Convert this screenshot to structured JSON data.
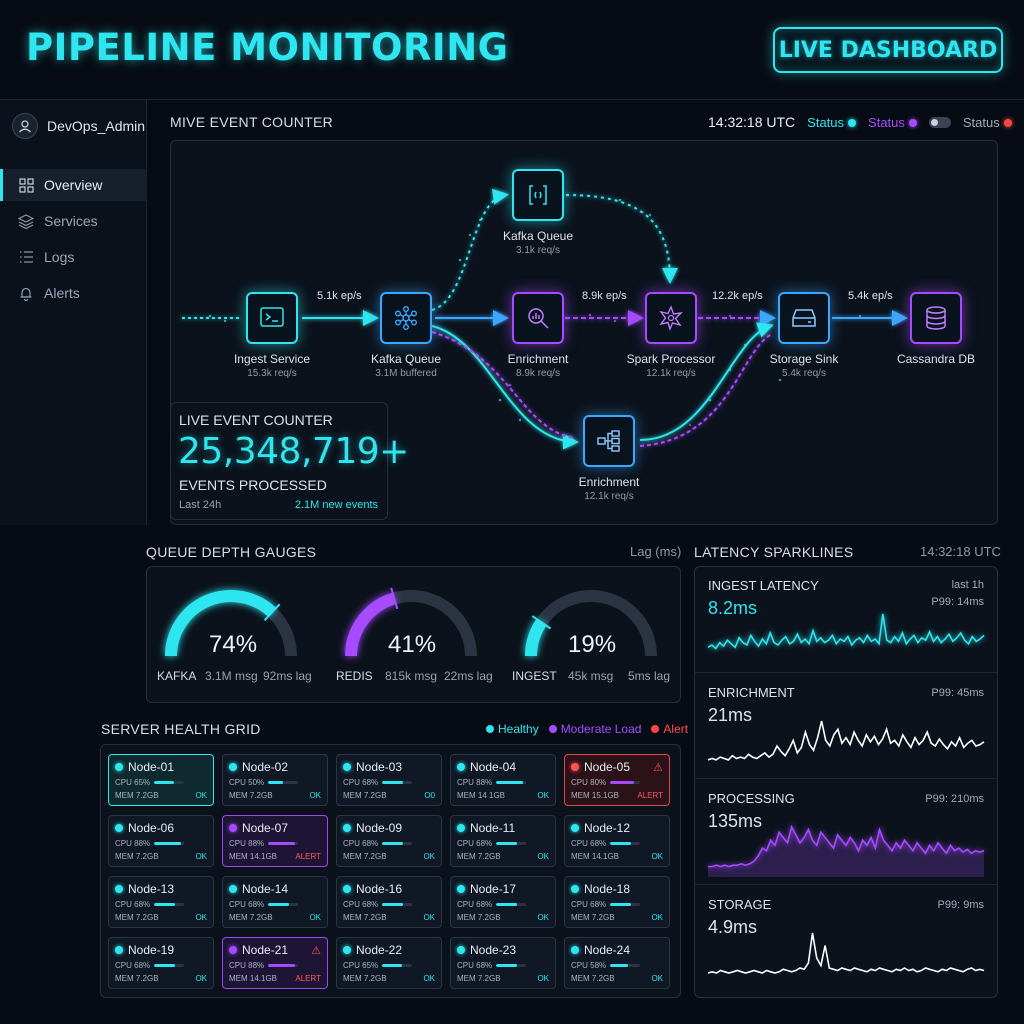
{
  "header": {
    "title": "PIPELINE MONITORING",
    "live_button": "LIVE DASHBOARD"
  },
  "sidebar": {
    "user": "DevOps_Admin",
    "items": [
      {
        "label": "Overview",
        "icon": "grid-icon",
        "active": true
      },
      {
        "label": "Services",
        "icon": "layers-icon"
      },
      {
        "label": "Logs",
        "icon": "list-icon"
      },
      {
        "label": "Alerts",
        "icon": "bell-icon"
      }
    ]
  },
  "event_section": {
    "title": "MIVE EVENT COUNTER",
    "time": "14:32:18 UTC",
    "statuses": [
      {
        "label": "Status",
        "color": "#2ee6ef"
      },
      {
        "label": "Status",
        "color": "#a64bff"
      },
      {
        "label": "Status",
        "color": "#ff4444"
      }
    ]
  },
  "pipeline": {
    "nodes": {
      "ingest": {
        "label": "Ingest Service",
        "sub": "15.3k req/s"
      },
      "kafka": {
        "label": "Kafka Queue",
        "sub": "3.1M buffered"
      },
      "kafka_top": {
        "label": "Kafka Queue",
        "sub": "3.1k req/s"
      },
      "enrich": {
        "label": "Enrichment",
        "sub": "8.9k req/s"
      },
      "spark": {
        "label": "Spark Processor",
        "sub": "12.1k req/s"
      },
      "storage": {
        "label": "Storage Sink",
        "sub": "5.4k req/s"
      },
      "cassandra": {
        "label": "Cassandra DB",
        "sub": ""
      },
      "enrich_bottom": {
        "label": "Enrichment",
        "sub": "12.1k req/s"
      }
    },
    "rates": {
      "r1": "5.1k ep/s",
      "r2": "8.9k ep/s",
      "r3": "12.2k ep/s",
      "r4": "5.4k ep/s"
    }
  },
  "counter": {
    "title": "LIVE EVENT COUNTER",
    "value": "25,348,719+",
    "caption": "EVENTS PROCESSED",
    "period": "Last 24h",
    "new_events": "2.1M new events"
  },
  "queue": {
    "title": "QUEUE DEPTH GAUGES",
    "unit": "Lag (ms)",
    "gauges": [
      {
        "name": "KAFKA",
        "pct": "74%",
        "msg": "3.1M msg",
        "lag": "92ms lag",
        "value": 0.74,
        "color": "#2ee6ef"
      },
      {
        "name": "REDIS",
        "pct": "41%",
        "msg": "815k msg",
        "lag": "22ms lag",
        "value": 0.41,
        "color": "#a64bff"
      },
      {
        "name": "INGEST",
        "pct": "19%",
        "msg": "45k msg",
        "lag": "5ms lag",
        "value": 0.19,
        "color": "#2ee6ef"
      }
    ]
  },
  "server": {
    "title": "SERVER HEALTH GRID",
    "legend": [
      {
        "label": "Healthy",
        "color": "#2ee6ef"
      },
      {
        "label": "Moderate Load",
        "color": "#a64bff"
      },
      {
        "label": "Alert",
        "color": "#ff4444"
      }
    ],
    "nodes": [
      {
        "name": "Node-01",
        "cpu": "CPU 65%",
        "mem": "MEM 7.2GB",
        "status": "OK",
        "state": "cyan",
        "load": 0.65
      },
      {
        "name": "Node-02",
        "cpu": "CPU 50%",
        "mem": "MEM 7.2GB",
        "status": "OK",
        "state": "healthy",
        "load": 0.5
      },
      {
        "name": "Node-03",
        "cpu": "CPU 68%",
        "mem": "MEM 7.2GB",
        "status": "O0",
        "state": "healthy",
        "load": 0.68
      },
      {
        "name": "Node-04",
        "cpu": "CPU 88%",
        "mem": "MEM 14 1GB",
        "status": "OK",
        "state": "healthy",
        "load": 0.88
      },
      {
        "name": "Node-05",
        "cpu": "CPU 80%",
        "mem": "MEM 15.1GB",
        "status": "ALERT",
        "state": "red",
        "load": 0.8
      },
      {
        "name": "Node-06",
        "cpu": "CPU 88%",
        "mem": "MEM 7.2GB",
        "status": "OK",
        "state": "healthy",
        "load": 0.88
      },
      {
        "name": "Node-07",
        "cpu": "CPU 88%",
        "mem": "MEM 14.1GB",
        "status": "ALERT",
        "state": "purple",
        "load": 0.88
      },
      {
        "name": "Node-09",
        "cpu": "CPU 68%",
        "mem": "MEM 7.2GB",
        "status": "OK",
        "state": "healthy",
        "load": 0.68
      },
      {
        "name": "Node-11",
        "cpu": "CPU 68%",
        "mem": "MEM 7.2GB",
        "status": "OK",
        "state": "healthy",
        "load": 0.68
      },
      {
        "name": "Node-12",
        "cpu": "CPU 68%",
        "mem": "MEM 14.1GB",
        "status": "OK",
        "state": "healthy",
        "load": 0.68
      },
      {
        "name": "Node-13",
        "cpu": "CPU 68%",
        "mem": "MEM 7.2GB",
        "status": "OK",
        "state": "healthy",
        "load": 0.68
      },
      {
        "name": "Node-14",
        "cpu": "CPU 68%",
        "mem": "MEM 7.2GB",
        "status": "OK",
        "state": "healthy",
        "load": 0.68
      },
      {
        "name": "Node-16",
        "cpu": "CPU 68%",
        "mem": "MEM 7.2GB",
        "status": "OK",
        "state": "healthy",
        "load": 0.68
      },
      {
        "name": "Node-17",
        "cpu": "CPU 68%",
        "mem": "MEM 7.2GB",
        "status": "OK",
        "state": "healthy",
        "load": 0.68
      },
      {
        "name": "Node-18",
        "cpu": "CPU 68%",
        "mem": "MEM 7.2GB",
        "status": "OK",
        "state": "healthy",
        "load": 0.68
      },
      {
        "name": "Node-19",
        "cpu": "CPU 68%",
        "mem": "MEM 7.2GB",
        "status": "OK",
        "state": "healthy",
        "load": 0.68
      },
      {
        "name": "Node-21",
        "cpu": "CPU 88%",
        "mem": "MEM 14.1GB",
        "status": "ALERT",
        "state": "purple",
        "load": 0.88
      },
      {
        "name": "Node-22",
        "cpu": "CPU 65%",
        "mem": "MEM 7.2GB",
        "status": "OK",
        "state": "healthy",
        "load": 0.65
      },
      {
        "name": "Node-23",
        "cpu": "CPU 68%",
        "mem": "MEM 7.2GB",
        "status": "OK",
        "state": "healthy",
        "load": 0.68
      },
      {
        "name": "Node-24",
        "cpu": "CPU 58%",
        "mem": "MEM 7.2GB",
        "status": "OK",
        "state": "healthy",
        "load": 0.58
      }
    ]
  },
  "latency": {
    "title": "LATENCY SPARKLINES",
    "time": "14:32:18 UTC",
    "series": [
      {
        "name": "INGEST LATENCY",
        "value": "8.2ms",
        "meta1": "last 1h",
        "meta2": "P99: 14ms",
        "color": "#2ee6ef"
      },
      {
        "name": "ENRICHMENT",
        "value": "21ms",
        "meta1": "",
        "meta2": "P99: 45ms",
        "color": "#ffffff"
      },
      {
        "name": "PROCESSING",
        "value": "135ms",
        "meta1": "",
        "meta2": "P99: 210ms",
        "color": "#a64bff"
      },
      {
        "name": "STORAGE",
        "value": "4.9ms",
        "meta1": "",
        "meta2": "P99: 9ms",
        "color": "#ffffff"
      }
    ]
  }
}
